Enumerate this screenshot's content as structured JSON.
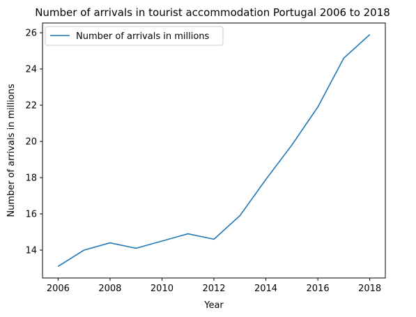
{
  "chart_data": {
    "type": "line",
    "title": "Number of arrivals in tourist accommodation Portugal 2006 to 2018",
    "xlabel": "Year",
    "ylabel": "Number of arrivals in millions",
    "x": [
      2006,
      2007,
      2008,
      2009,
      2010,
      2011,
      2012,
      2013,
      2014,
      2015,
      2016,
      2017,
      2018
    ],
    "series": [
      {
        "name": "Number of arrivals in millions",
        "color": "#1f77b4",
        "values": [
          13.1,
          14.0,
          14.4,
          14.1,
          14.5,
          14.9,
          14.6,
          15.9,
          17.9,
          19.8,
          21.9,
          24.6,
          25.9
        ]
      }
    ],
    "xticks": [
      "2006",
      "2008",
      "2010",
      "2012",
      "2014",
      "2016",
      "2018"
    ],
    "yticks": [
      "14",
      "16",
      "18",
      "20",
      "22",
      "24",
      "26"
    ],
    "xlim": [
      2005.4,
      2018.6
    ],
    "ylim": [
      12.46,
      26.54
    ],
    "grid": false,
    "legend_position": "top-left"
  }
}
